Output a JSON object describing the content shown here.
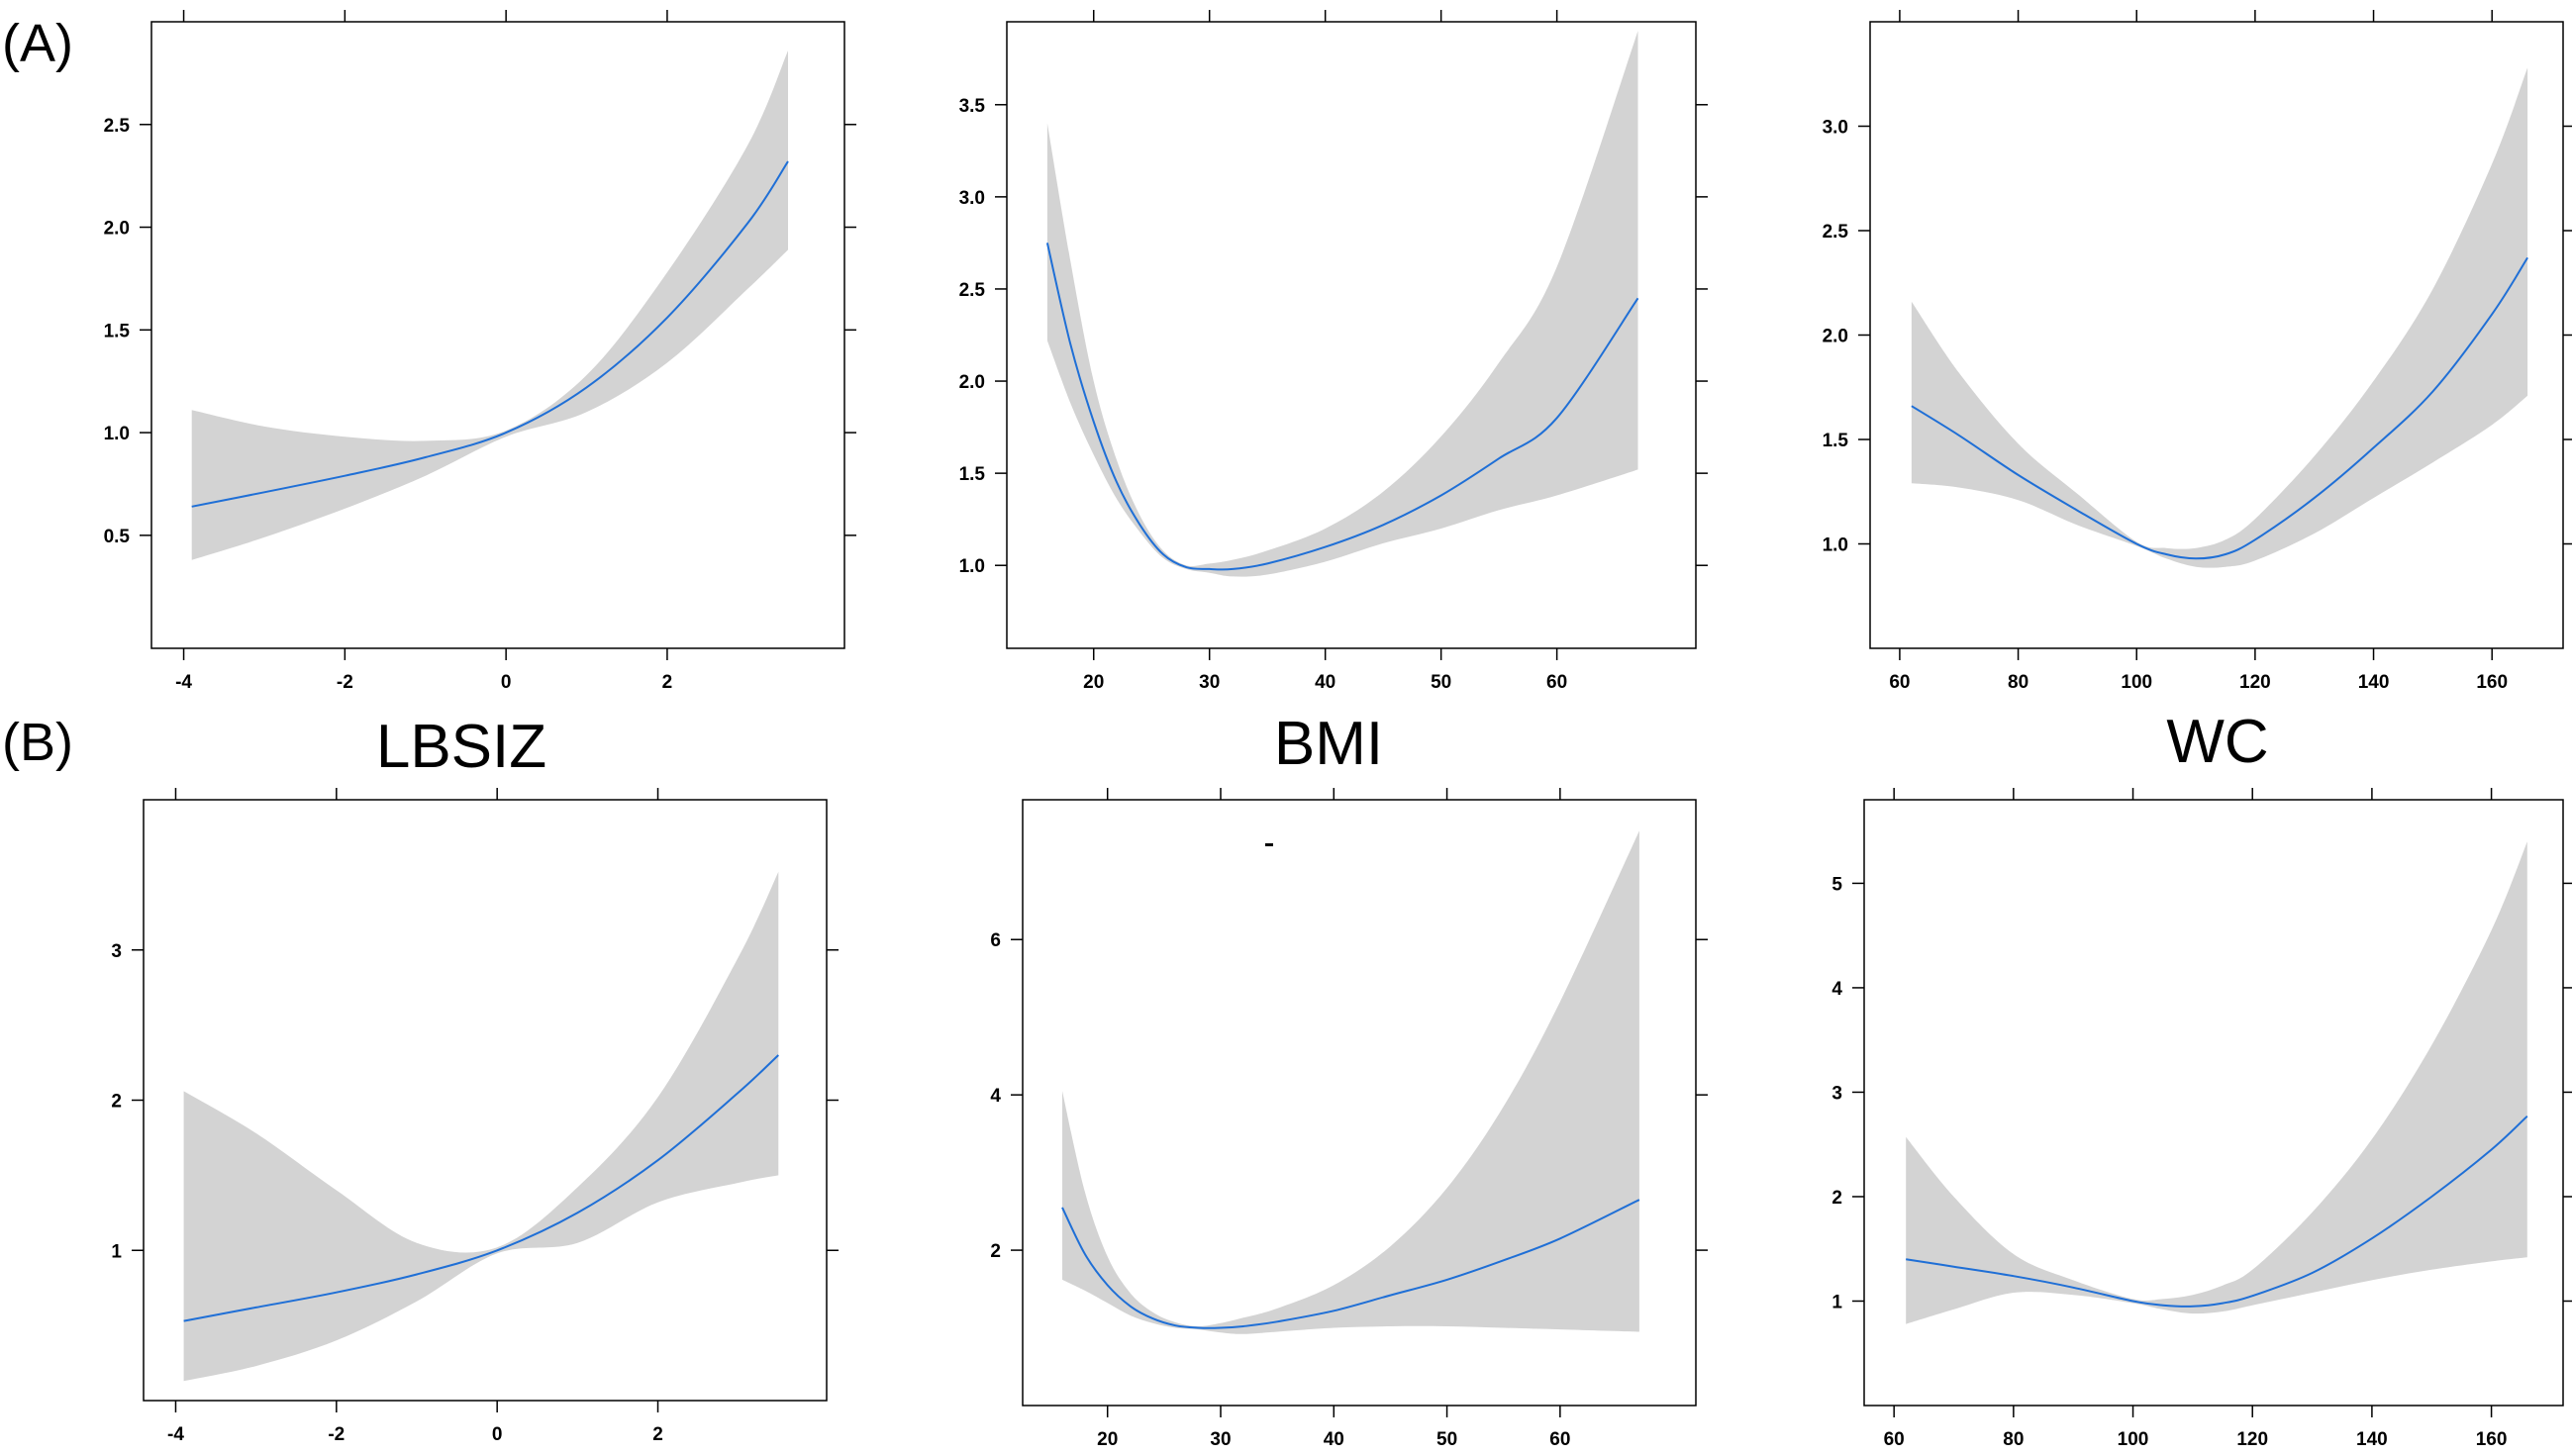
{
  "panel_labels": {
    "a": "(A)",
    "b": "(B)"
  },
  "column_titles": [
    "LBSIZ",
    "BMI",
    "WC"
  ],
  "colors": {
    "line": "#1f6fd6",
    "band": "#d3d3d3",
    "axis": "#000000"
  },
  "chart_data": [
    {
      "id": "A-LBSIZ",
      "type": "line",
      "row": "A",
      "title": "",
      "xlabel": "",
      "ylabel": "",
      "xlim": [
        -4.4,
        4.2
      ],
      "ylim": [
        -0.05,
        3.0
      ],
      "xticks": [
        -4,
        -2,
        0,
        2
      ],
      "yticks": [
        0.5,
        1.0,
        1.5,
        2.0,
        2.5
      ],
      "xtick_labels": [
        "-4",
        "-2",
        "0",
        "2"
      ],
      "ytick_labels": [
        "0.5",
        "1.0",
        "1.5",
        "2.0",
        "2.5"
      ],
      "series": [
        {
          "x": [
            -3.9,
            -3.0,
            -2.0,
            -1.0,
            0.0,
            1.0,
            2.0,
            3.0,
            3.5
          ],
          "y": [
            0.64,
            0.71,
            0.79,
            0.88,
            1.0,
            1.22,
            1.56,
            2.02,
            2.32
          ],
          "lower": [
            0.38,
            0.49,
            0.63,
            0.79,
            0.98,
            1.1,
            1.34,
            1.7,
            1.89
          ],
          "upper": [
            1.11,
            1.03,
            0.98,
            0.96,
            1.01,
            1.28,
            1.78,
            2.4,
            2.86
          ]
        }
      ]
    },
    {
      "id": "A-BMI",
      "type": "line",
      "row": "A",
      "title": "",
      "xlabel": "",
      "ylabel": "",
      "xlim": [
        12.5,
        72
      ],
      "ylim": [
        0.55,
        3.95
      ],
      "xticks": [
        20,
        30,
        40,
        50,
        60
      ],
      "yticks": [
        1.0,
        1.5,
        2.0,
        2.5,
        3.0,
        3.5
      ],
      "xtick_labels": [
        "20",
        "30",
        "40",
        "50",
        "60"
      ],
      "ytick_labels": [
        "1.0",
        "1.5",
        "2.0",
        "2.5",
        "3.0",
        "3.5"
      ],
      "series": [
        {
          "x": [
            16,
            18,
            20,
            22,
            24,
            26,
            28,
            30,
            32,
            35,
            40,
            45,
            50,
            55,
            60,
            67
          ],
          "y": [
            2.75,
            2.2,
            1.78,
            1.45,
            1.22,
            1.06,
            0.99,
            0.98,
            0.98,
            1.01,
            1.1,
            1.22,
            1.38,
            1.58,
            1.8,
            2.45
          ],
          "lower": [
            2.22,
            1.88,
            1.6,
            1.36,
            1.18,
            1.04,
            0.98,
            0.96,
            0.94,
            0.95,
            1.02,
            1.12,
            1.2,
            1.3,
            1.38,
            1.52
          ],
          "upper": [
            3.4,
            2.65,
            2.0,
            1.57,
            1.27,
            1.08,
            1.0,
            1.01,
            1.03,
            1.08,
            1.2,
            1.4,
            1.7,
            2.1,
            2.62,
            3.9
          ]
        }
      ]
    },
    {
      "id": "A-WC",
      "type": "line",
      "row": "A",
      "title": "",
      "xlabel": "",
      "ylabel": "",
      "xlim": [
        55,
        172
      ],
      "ylim": [
        0.5,
        3.5
      ],
      "xticks": [
        60,
        80,
        100,
        120,
        140,
        160
      ],
      "yticks": [
        1.0,
        1.5,
        2.0,
        2.5,
        3.0
      ],
      "xtick_labels": [
        "60",
        "80",
        "100",
        "120",
        "140",
        "160"
      ],
      "ytick_labels": [
        "1.0",
        "1.5",
        "2.0",
        "2.5",
        "3.0"
      ],
      "series": [
        {
          "x": [
            62,
            70,
            80,
            90,
            100,
            105,
            110,
            115,
            120,
            130,
            140,
            150,
            160,
            166
          ],
          "y": [
            1.66,
            1.52,
            1.33,
            1.16,
            1.0,
            0.95,
            0.93,
            0.95,
            1.02,
            1.22,
            1.46,
            1.73,
            2.1,
            2.37
          ],
          "lower": [
            1.29,
            1.27,
            1.21,
            1.09,
            0.99,
            0.93,
            0.89,
            0.89,
            0.92,
            1.05,
            1.22,
            1.39,
            1.57,
            1.71
          ],
          "upper": [
            2.16,
            1.82,
            1.48,
            1.24,
            1.01,
            0.98,
            0.98,
            1.02,
            1.12,
            1.42,
            1.78,
            2.22,
            2.82,
            3.28
          ]
        }
      ]
    },
    {
      "id": "B-LBSIZ",
      "type": "line",
      "row": "B",
      "title": "",
      "xlabel": "",
      "ylabel": "",
      "xlim": [
        -4.4,
        4.1
      ],
      "ylim": [
        0.0,
        4.0
      ],
      "xticks": [
        -4,
        -2,
        0,
        2
      ],
      "yticks": [
        1,
        2,
        3
      ],
      "xtick_labels": [
        "-4",
        "-2",
        "0",
        "2"
      ],
      "ytick_labels": [
        "1",
        "2",
        "3"
      ],
      "series": [
        {
          "x": [
            -3.9,
            -3.0,
            -2.0,
            -1.0,
            0.0,
            1.0,
            2.0,
            3.0,
            3.5
          ],
          "y": [
            0.53,
            0.62,
            0.72,
            0.84,
            1.0,
            1.25,
            1.6,
            2.05,
            2.3
          ],
          "lower": [
            0.13,
            0.23,
            0.4,
            0.66,
            0.98,
            1.05,
            1.32,
            1.45,
            1.5
          ],
          "upper": [
            2.06,
            1.78,
            1.4,
            1.05,
            1.02,
            1.42,
            2.02,
            2.95,
            3.52
          ]
        }
      ]
    },
    {
      "id": "B-BMI",
      "type": "line",
      "row": "B",
      "title": "",
      "xlabel": "",
      "ylabel": "",
      "xlim": [
        12.5,
        72
      ],
      "ylim": [
        0.0,
        7.8
      ],
      "xticks": [
        20,
        30,
        40,
        50,
        60
      ],
      "yticks": [
        2,
        4,
        6
      ],
      "xtick_labels": [
        "20",
        "30",
        "40",
        "50",
        "60"
      ],
      "ytick_labels": [
        "2",
        "4",
        "6"
      ],
      "series": [
        {
          "x": [
            16,
            18,
            20,
            22,
            24,
            26,
            28,
            30,
            32,
            35,
            40,
            45,
            50,
            55,
            60,
            67
          ],
          "y": [
            2.55,
            1.95,
            1.55,
            1.28,
            1.12,
            1.03,
            1.0,
            1.0,
            1.02,
            1.08,
            1.22,
            1.42,
            1.62,
            1.87,
            2.15,
            2.65
          ],
          "lower": [
            1.62,
            1.48,
            1.32,
            1.16,
            1.06,
            1.0,
            0.98,
            0.94,
            0.92,
            0.95,
            1.0,
            1.02,
            1.02,
            1.0,
            0.98,
            0.95
          ],
          "upper": [
            4.05,
            2.75,
            1.92,
            1.45,
            1.2,
            1.07,
            1.02,
            1.06,
            1.13,
            1.25,
            1.55,
            2.05,
            2.8,
            3.85,
            5.2,
            7.4
          ]
        }
      ]
    },
    {
      "id": "B-WC",
      "type": "line",
      "row": "B",
      "title": "",
      "xlabel": "",
      "ylabel": "",
      "xlim": [
        55,
        172
      ],
      "ylim": [
        0.0,
        5.8
      ],
      "xticks": [
        60,
        80,
        100,
        120,
        140,
        160
      ],
      "yticks": [
        1,
        2,
        3,
        4,
        5
      ],
      "xtick_labels": [
        "60",
        "80",
        "100",
        "120",
        "140",
        "160"
      ],
      "ytick_labels": [
        "1",
        "2",
        "3",
        "4",
        "5"
      ],
      "series": [
        {
          "x": [
            62,
            70,
            80,
            90,
            100,
            105,
            110,
            115,
            120,
            130,
            140,
            150,
            160,
            166
          ],
          "y": [
            1.4,
            1.33,
            1.24,
            1.13,
            1.0,
            0.96,
            0.95,
            0.98,
            1.05,
            1.27,
            1.6,
            2.0,
            2.45,
            2.77
          ],
          "lower": [
            0.78,
            0.92,
            1.08,
            1.06,
            0.98,
            0.92,
            0.88,
            0.9,
            0.96,
            1.08,
            1.2,
            1.3,
            1.38,
            1.42
          ],
          "upper": [
            2.57,
            2.0,
            1.45,
            1.2,
            1.02,
            1.02,
            1.06,
            1.15,
            1.3,
            1.85,
            2.55,
            3.45,
            4.55,
            5.4
          ]
        }
      ]
    }
  ]
}
